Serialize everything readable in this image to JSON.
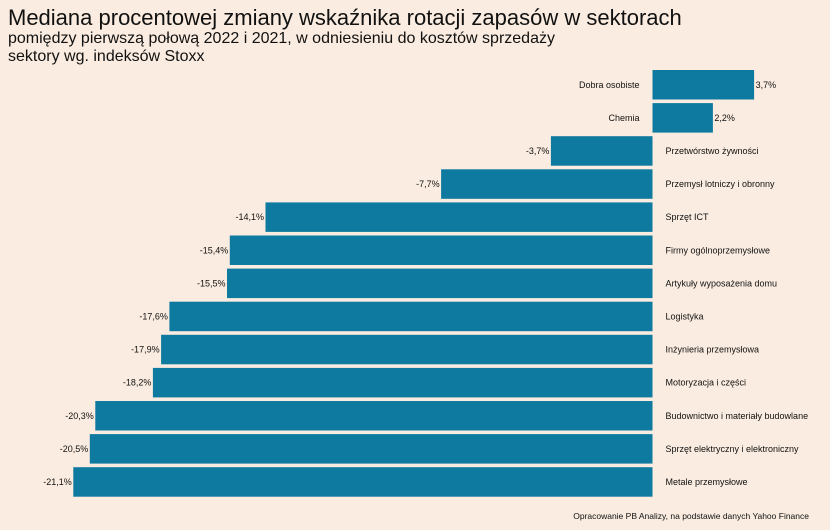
{
  "header": {
    "title": "Mediana procentowej zmiany wskaźnika rotacji zapasów w sektorach",
    "subtitle_line1": "pomiędzy pierwszą połową 2022 i 2021, w odniesieniu do kosztów sprzedaży",
    "subtitle_line2": "sektory wg. indeksów Stoxx"
  },
  "footer": {
    "source": "Opracowanie PB Analizy, na podstawie danych Yahoo Finance"
  },
  "colors": {
    "background": "#faece0",
    "bar": "#0e7aa0"
  },
  "chart_data": {
    "type": "bar",
    "orientation": "horizontal",
    "categories": [
      "Dobra osobiste",
      "Chemia",
      "Przetwórstwo żywności",
      "Przemysł lotniczy i obronny",
      "Sprzęt ICT",
      "Firmy ogólnoprzemysłowe",
      "Artykuły wyposażenia domu",
      "Logistyka",
      "Inżynieria przemysłowa",
      "Motoryzacja i części",
      "Budownictwo i materiały budowlane",
      "Sprzęt elektryczny i elektroniczny",
      "Metale przemysłowe"
    ],
    "values": [
      3.7,
      2.2,
      -3.7,
      -7.7,
      -14.1,
      -15.4,
      -15.5,
      -17.6,
      -17.9,
      -18.2,
      -20.3,
      -20.5,
      -21.1
    ],
    "value_labels": [
      "3,7%",
      "2,2%",
      "-3,7%",
      "-7,7%",
      "-14,1%",
      "-15,4%",
      "-15,5%",
      "-17,6%",
      "-17,9%",
      "-18,2%",
      "-20,3%",
      "-20,5%",
      "-21,1%"
    ],
    "unit": "%",
    "grid": false
  }
}
